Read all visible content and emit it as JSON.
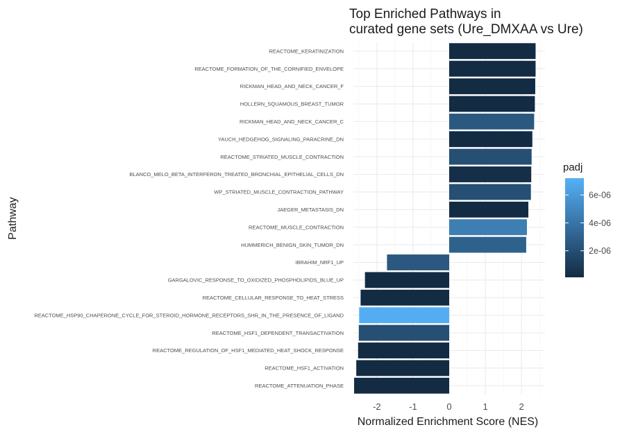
{
  "chart_data": {
    "type": "bar",
    "orientation": "horizontal",
    "title_lines": [
      "Top Enriched Pathways in",
      "curated gene sets (Ure_DMXAA vs Ure)"
    ],
    "xlabel": "Normalized Enrichment Score (NES)",
    "ylabel": "Pathway",
    "xlim": [
      -2.65,
      2.65
    ],
    "x_ticks": [
      -2,
      -1,
      0,
      1,
      2
    ],
    "x_tick_labels": [
      "-2",
      "-1",
      "0",
      "1",
      "2"
    ],
    "grid": true,
    "categories": [
      "REACTOME_KERATINIZATION",
      "REACTOME_FORMATION_OF_THE_CORNIFIED_ENVELOPE",
      "RICKMAN_HEAD_AND_NECK_CANCER_F",
      "HOLLERN_SQUAMOUS_BREAST_TUMOR",
      "RICKMAN_HEAD_AND_NECK_CANCER_C",
      "YAUCH_HEDGEHOG_SIGNALING_PARACRINE_DN",
      "REACTOME_STRIATED_MUSCLE_CONTRACTION",
      "BLANCO_MELO_BETA_INTERFERON_TREATED_BRONCHIAL_EPITHELIAL_CELLS_DN",
      "WP_STRIATED_MUSCLE_CONTRACTION_PATHWAY",
      "JAEGER_METASTASIS_DN",
      "REACTOME_MUSCLE_CONTRACTION",
      "HUMMERICH_BENIGN_SKIN_TUMOR_DN",
      "IBRAHIM_NRF1_UP",
      "GARGALOVIC_RESPONSE_TO_OXIDIZED_PHOSPHOLIPIDS_BLUE_UP",
      "REACTOME_CELLULAR_RESPONSE_TO_HEAT_STRESS",
      "REACTOME_HSP90_CHAPERONE_CYCLE_FOR_STEROID_HORMONE_RECEPTORS_SHR_IN_THE_PRESENCE_OF_LIGAND",
      "REACTOME_HSF1_DEPENDENT_TRANSACTIVATION",
      "REACTOME_REGULATION_OF_HSF1_MEDIATED_HEAT_SHOCK_RESPONSE",
      "REACTOME_HSF1_ACTIVATION",
      "REACTOME_ATTENUATION_PHASE"
    ],
    "values": [
      2.39,
      2.39,
      2.38,
      2.37,
      2.35,
      2.3,
      2.28,
      2.27,
      2.26,
      2.19,
      2.15,
      2.13,
      -1.72,
      -2.33,
      -2.45,
      -2.49,
      -2.5,
      -2.52,
      -2.57,
      -2.63
    ],
    "padj": [
      1e-07,
      1.5e-07,
      1e-07,
      1e-07,
      2.5e-06,
      1e-07,
      2e-06,
      3e-07,
      2e-06,
      1.5e-07,
      4.5e-06,
      3e-06,
      2.5e-06,
      1e-07,
      1e-07,
      7e-06,
      2e-06,
      1e-07,
      1e-07,
      1e-07
    ],
    "legend": {
      "title": "padj",
      "position": "right",
      "min": 1e-07,
      "max": 7.2e-06,
      "ticks": [
        2e-06,
        4e-06,
        6e-06
      ],
      "tick_labels": [
        "2e-06",
        "4e-06",
        "6e-06"
      ],
      "color_low": "#132b43",
      "color_high": "#56b1f7"
    }
  }
}
